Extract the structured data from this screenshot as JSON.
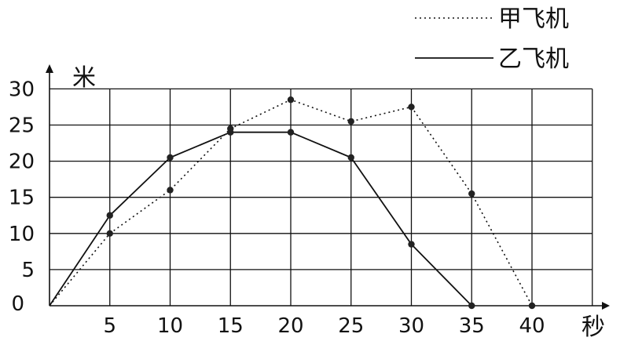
{
  "chart_data": {
    "type": "line",
    "xlabel": "秒",
    "ylabel": "米",
    "x_ticks": [
      5,
      10,
      15,
      20,
      25,
      30,
      35,
      40
    ],
    "y_ticks": [
      0,
      5,
      10,
      15,
      20,
      25,
      30
    ],
    "origin_label": "0",
    "xlim": [
      0,
      45
    ],
    "ylim": [
      0,
      30
    ],
    "grid": true,
    "legend_position": "top-right",
    "series": [
      {
        "name": "甲飞机",
        "style": "dotted",
        "color": "#111111",
        "points": [
          [
            0,
            0
          ],
          [
            5,
            10
          ],
          [
            10,
            16
          ],
          [
            15,
            24.5
          ],
          [
            20,
            28.5
          ],
          [
            25,
            25.5
          ],
          [
            30,
            27.5
          ],
          [
            35,
            15.5
          ],
          [
            40,
            0
          ]
        ]
      },
      {
        "name": "乙飞机",
        "style": "solid",
        "color": "#111111",
        "points": [
          [
            0,
            0
          ],
          [
            5,
            12.5
          ],
          [
            10,
            20.5
          ],
          [
            15,
            24
          ],
          [
            20,
            24
          ],
          [
            25,
            20.5
          ],
          [
            30,
            8.5
          ],
          [
            35,
            0
          ]
        ]
      }
    ]
  }
}
